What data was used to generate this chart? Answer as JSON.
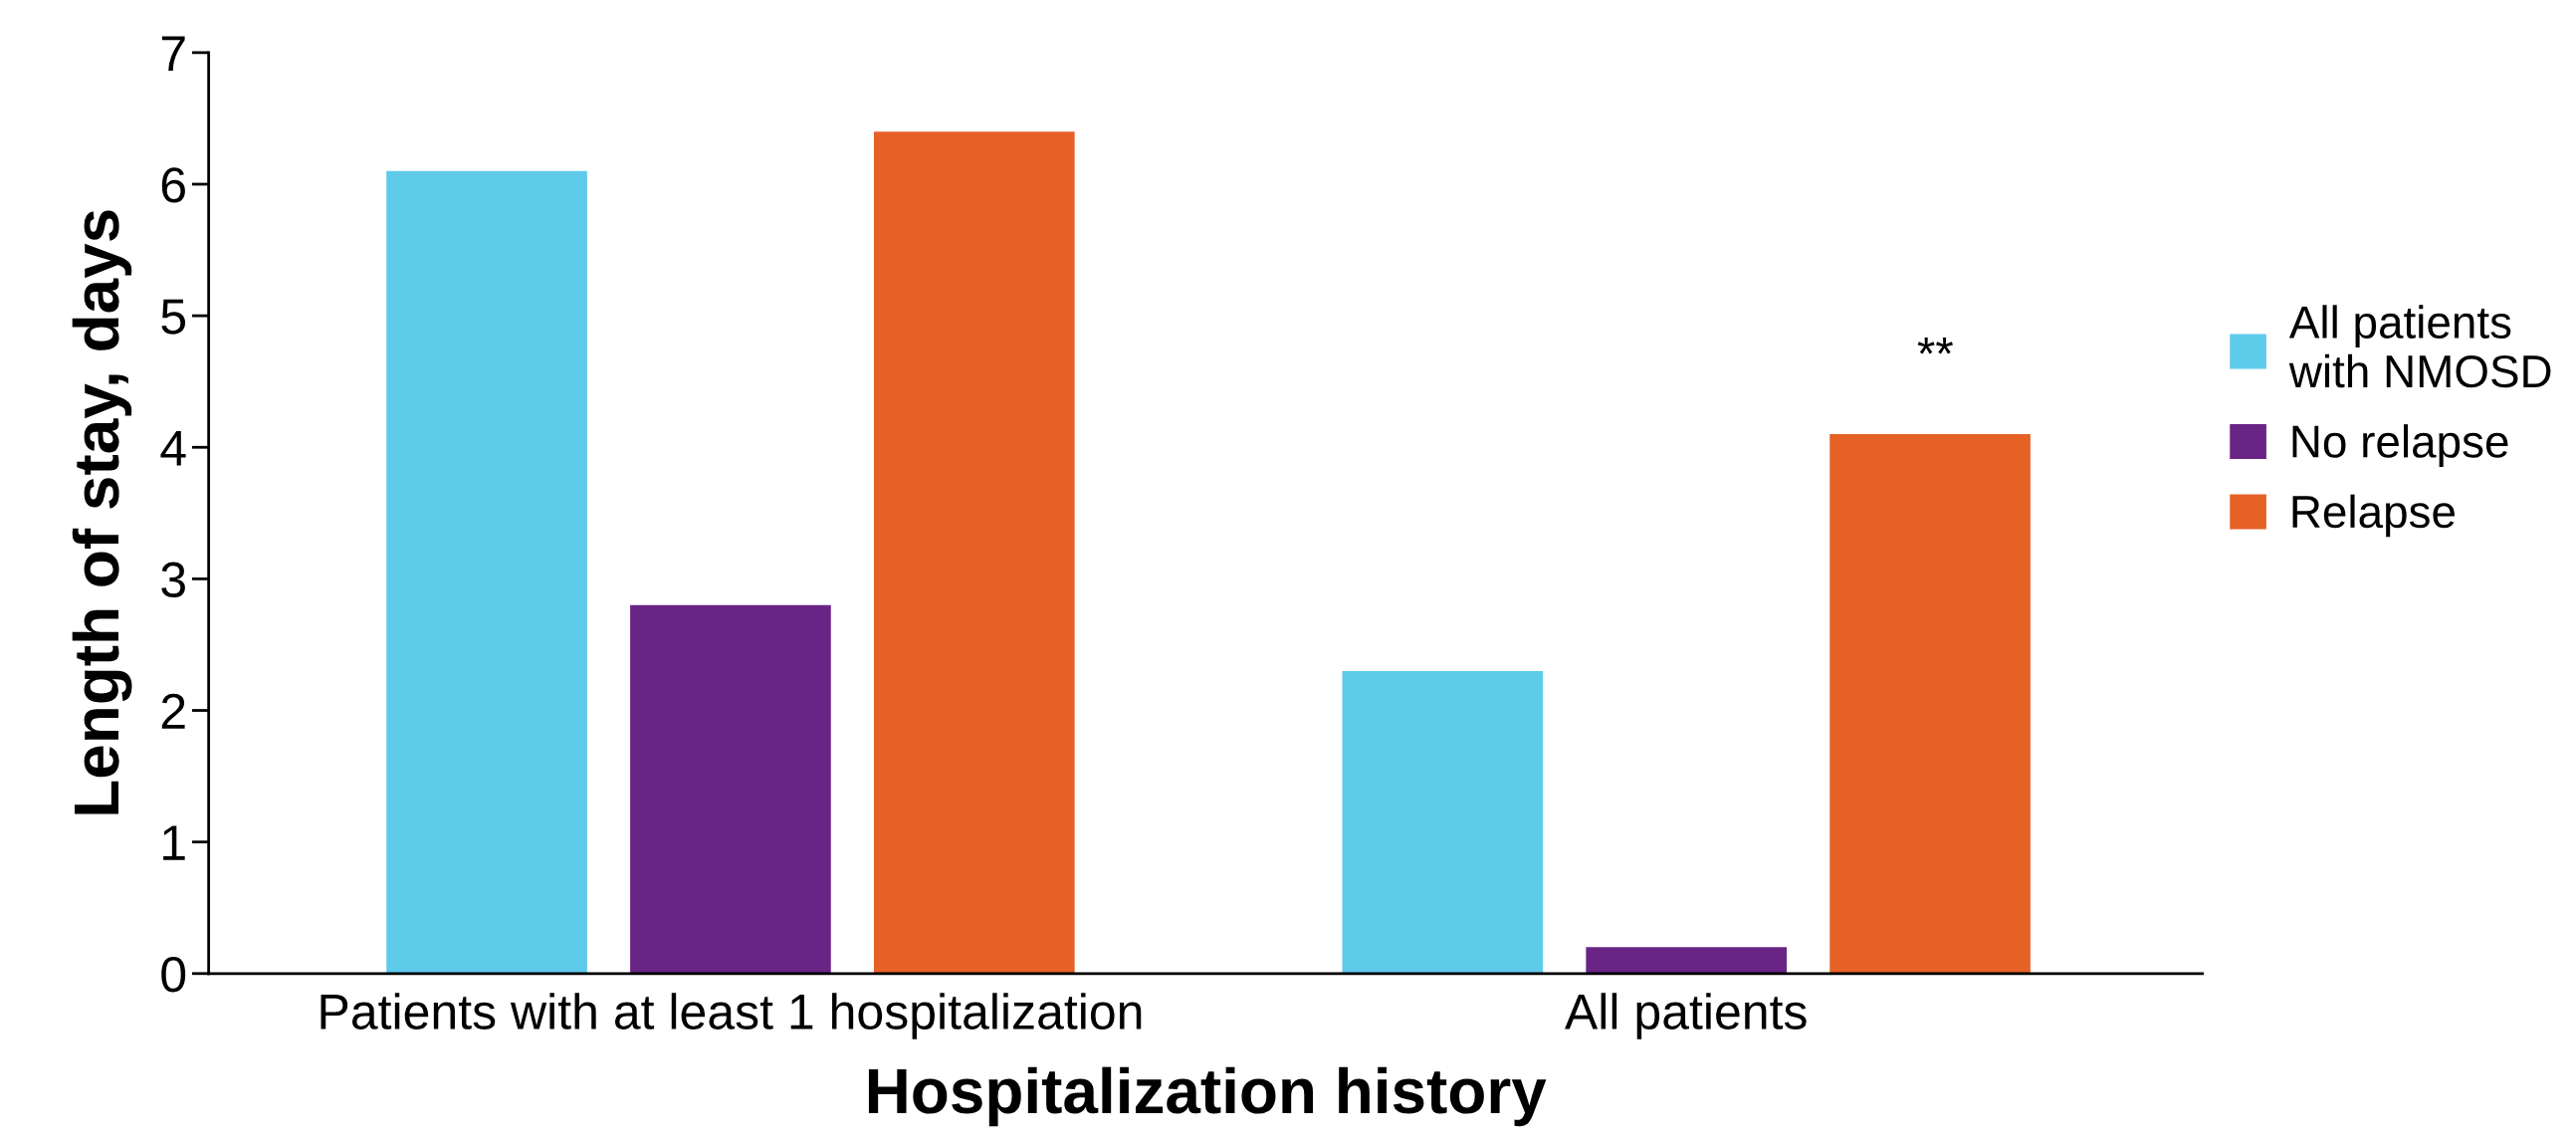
{
  "chart_data": {
    "type": "bar",
    "xlabel": "Hospitalization history",
    "ylabel": "Length of stay, days",
    "categories": [
      "Patients with at least 1 hospitalization",
      "All patients"
    ],
    "series": [
      {
        "name": "All patients\nwith NMOSD",
        "color": "#5ecbea",
        "values": [
          6.1,
          2.3
        ]
      },
      {
        "name": "No relapse",
        "color": "#692485",
        "values": [
          2.8,
          0.2
        ]
      },
      {
        "name": "Relapse",
        "color": "#e56126",
        "values": [
          6.4,
          4.1
        ]
      }
    ],
    "ylim": [
      0,
      7
    ],
    "yticks": [
      0,
      1,
      2,
      3,
      4,
      5,
      6,
      7
    ],
    "grid": false,
    "legend": "right",
    "annotations": [
      "**"
    ]
  }
}
